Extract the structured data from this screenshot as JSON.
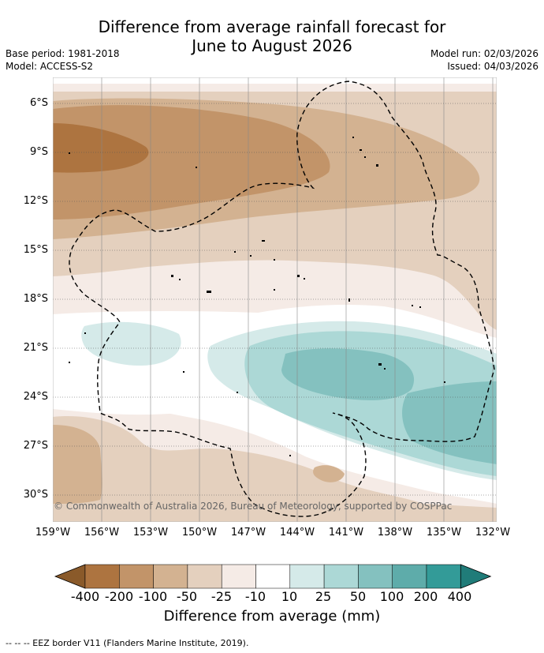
{
  "title_line1": "Difference from average rainfall forecast for",
  "title_line2": "June to August 2026",
  "base_period": "Base period: 1981-2018",
  "model": "Model: ACCESS-S2",
  "model_run": "Model run: 02/03/2026",
  "issued": "Issued: 04/03/2026",
  "copyright": "© Commonwealth of Australia 2026, Bureau of Meteorology, supported by COSPPac",
  "lat_labels": [
    "6°S",
    "9°S",
    "12°S",
    "15°S",
    "18°S",
    "21°S",
    "24°S",
    "27°S",
    "30°S"
  ],
  "lon_labels": [
    "159°W",
    "156°W",
    "153°W",
    "150°W",
    "147°W",
    "144°W",
    "141°W",
    "138°W",
    "135°W",
    "132°W"
  ],
  "colorbar": {
    "ticks": [
      "-400",
      "-200",
      "-100",
      "-50",
      "-25",
      "-10",
      "10",
      "25",
      "50",
      "100",
      "200",
      "400"
    ],
    "label": "Difference from average (mm)",
    "colors": [
      "#8a5a2a",
      "#ad7440",
      "#c29469",
      "#d3b291",
      "#e4d0be",
      "#f5ebe6",
      "#ffffff",
      "#d5eae9",
      "#acd8d6",
      "#84c1bf",
      "#5eacaa",
      "#339b98",
      "#207c79"
    ]
  },
  "footnote": "--  --  -- EEZ border V11 (Flanders Marine Institute, 2019)."
}
